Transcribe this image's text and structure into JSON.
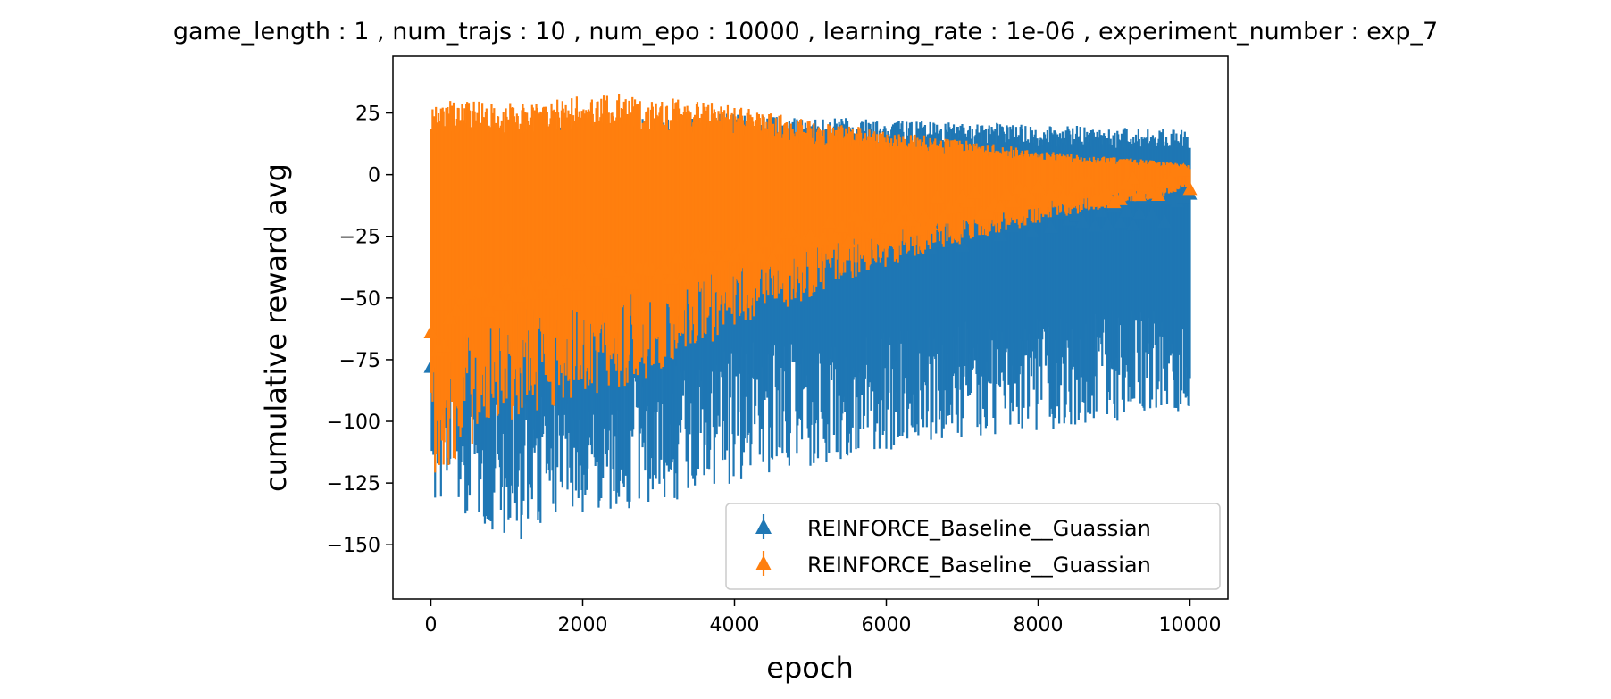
{
  "chart_data": {
    "type": "line",
    "title": "game_length : 1 , num_trajs : 10 , num_epo : 10000 , learning_rate : 1e-06 , experiment_number : exp_7",
    "xlabel": "epoch",
    "ylabel": "cumulative reward avg",
    "xlim": [
      -500,
      10500
    ],
    "ylim": [
      -172,
      48
    ],
    "xticks": [
      0,
      2000,
      4000,
      6000,
      8000,
      10000
    ],
    "yticks": [
      -150,
      -125,
      -100,
      -75,
      -50,
      -25,
      0,
      25
    ],
    "grid": false,
    "legend_position": "lower-right",
    "series": [
      {
        "name": "REINFORCE_Baseline__Guassian",
        "color": "#1f77b4",
        "marker": "triangle-up",
        "x": [
          0,
          500,
          1000,
          1500,
          2000,
          2500,
          3000,
          3500,
          4000,
          4500,
          5000,
          5500,
          6000,
          6500,
          7000,
          7500,
          8000,
          8500,
          9000,
          9500,
          10000
        ],
        "mean": [
          -80,
          -70,
          -62,
          -56,
          -50,
          -46,
          -42,
          -38,
          -35,
          -33,
          -31,
          -29,
          -27,
          -25,
          -24,
          -22,
          -20,
          -18,
          -16,
          -14,
          -12
        ],
        "upper": [
          8,
          14,
          17,
          19,
          21,
          22,
          23,
          24,
          25,
          24,
          23,
          23,
          22,
          22,
          21,
          21,
          20,
          20,
          19,
          19,
          18
        ],
        "lower": [
          -130,
          -140,
          -150,
          -145,
          -140,
          -138,
          -135,
          -130,
          -125,
          -122,
          -118,
          -115,
          -112,
          -110,
          -108,
          -106,
          -104,
          -102,
          -100,
          -98,
          -96
        ]
      },
      {
        "name": "REINFORCE_Baseline__Guassian",
        "color": "#ff7f0e",
        "marker": "triangle-up",
        "x": [
          0,
          500,
          1000,
          1500,
          2000,
          2500,
          3000,
          3500,
          4000,
          4500,
          5000,
          5500,
          6000,
          6500,
          7000,
          7500,
          8000,
          8500,
          9000,
          9500,
          10000
        ],
        "mean": [
          -70,
          -52,
          -48,
          -45,
          -42,
          -40,
          -38,
          -36,
          -32,
          -28,
          -25,
          -22,
          -19,
          -16,
          -14,
          -12,
          -10,
          -8,
          -6,
          -5,
          -3
        ],
        "upper": [
          30,
          30,
          30,
          31,
          32,
          33,
          32,
          30,
          28,
          25,
          22,
          20,
          18,
          16,
          14,
          12,
          10,
          8,
          7,
          6,
          4
        ],
        "lower": [
          -125,
          -110,
          -100,
          -95,
          -90,
          -88,
          -80,
          -72,
          -62,
          -56,
          -50,
          -44,
          -38,
          -32,
          -28,
          -24,
          -20,
          -16,
          -13,
          -10,
          -6
        ]
      }
    ]
  }
}
